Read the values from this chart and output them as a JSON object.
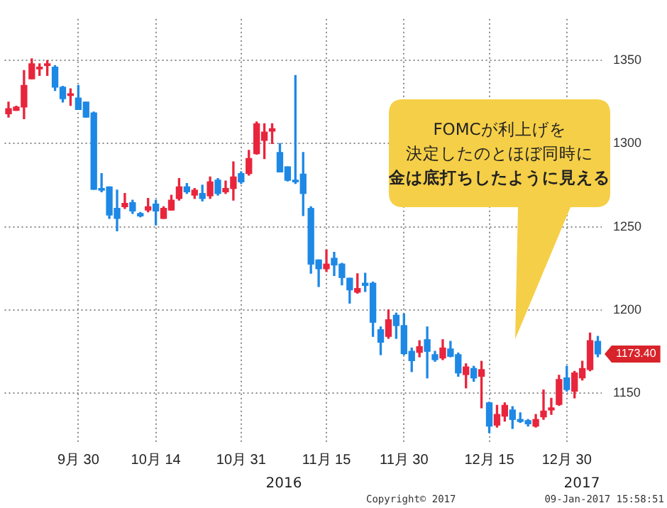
{
  "chart_data": {
    "type": "candlestick",
    "categories": [
      null,
      null,
      null,
      null,
      null,
      null,
      null,
      null,
      null,
      "9月 30",
      null,
      null,
      null,
      null,
      null,
      null,
      null,
      null,
      null,
      "10月 14",
      null,
      null,
      null,
      null,
      null,
      null,
      null,
      null,
      null,
      null,
      "10月 31",
      null,
      null,
      null,
      null,
      null,
      null,
      null,
      null,
      null,
      null,
      "11月 15",
      null,
      null,
      null,
      null,
      null,
      null,
      null,
      null,
      null,
      "11月 30",
      null,
      null,
      null,
      null,
      null,
      null,
      null,
      null,
      null,
      null,
      "12月 15",
      null,
      null,
      null,
      null,
      null,
      null,
      null,
      null,
      null,
      "12月 30",
      null,
      null,
      null,
      null
    ],
    "ohlc": [
      [
        1318,
        1325,
        1316,
        1321
      ],
      [
        1320,
        1322.5,
        1320,
        1322
      ],
      [
        1322,
        1344,
        1315,
        1335
      ],
      [
        1339,
        1351,
        1339,
        1348
      ],
      [
        1345,
        1348,
        1341,
        1346
      ],
      [
        1347,
        1350,
        1341,
        1348
      ],
      [
        1346,
        1347,
        1332,
        1334
      ],
      [
        1334,
        1334.5,
        1325,
        1327
      ],
      [
        1329,
        1333,
        1323,
        1330
      ],
      [
        1327.5,
        1335,
        1320.5,
        1320.5
      ],
      [
        1325,
        1325,
        1316,
        1316
      ],
      [
        1318.5,
        1319,
        1272.5,
        1272.5
      ],
      [
        1273,
        1282,
        1271,
        1272
      ],
      [
        1274,
        1274,
        1255,
        1257
      ],
      [
        1261,
        1272,
        1247.5,
        1255
      ],
      [
        1262,
        1270,
        1261,
        1264
      ],
      [
        1264.5,
        1266,
        1258,
        1259.5
      ],
      [
        1258,
        1258.6,
        1256,
        1256.5
      ],
      [
        1260,
        1267,
        1259,
        1262
      ],
      [
        1263.6,
        1266,
        1251,
        1259.5
      ],
      [
        1255,
        1262,
        1255,
        1261
      ],
      [
        1260,
        1269,
        1260,
        1266
      ],
      [
        1267,
        1279,
        1266,
        1274
      ],
      [
        1274,
        1276,
        1270,
        1271
      ],
      [
        1269,
        1273,
        1267,
        1272
      ],
      [
        1270,
        1275,
        1265.5,
        1267
      ],
      [
        1268.6,
        1280,
        1267,
        1277
      ],
      [
        1278,
        1279,
        1269,
        1270
      ],
      [
        1271,
        1277.5,
        1270,
        1273
      ],
      [
        1273,
        1289,
        1266,
        1280
      ],
      [
        1282,
        1283,
        1276,
        1277
      ],
      [
        1282,
        1296,
        1281,
        1291
      ],
      [
        1294,
        1313,
        1293.6,
        1312
      ],
      [
        1302,
        1312,
        1291,
        1307
      ],
      [
        1307.5,
        1312,
        1300,
        1309
      ],
      [
        1294.7,
        1300,
        1283,
        1283
      ],
      [
        1286,
        1286,
        1277.5,
        1278
      ],
      [
        1278,
        1341,
        1276,
        1277
      ],
      [
        1281.7,
        1294.7,
        1256.7,
        1270
      ],
      [
        1261,
        1262,
        1222,
        1227.5
      ],
      [
        1230,
        1230,
        1214,
        1224.7
      ],
      [
        1224.7,
        1236,
        1223,
        1227.5
      ],
      [
        1231,
        1234.6,
        1220.6,
        1227
      ],
      [
        1227.5,
        1228,
        1215,
        1219.4
      ],
      [
        1219,
        1219,
        1204,
        1212
      ],
      [
        1210.6,
        1221.7,
        1210,
        1212.8
      ],
      [
        1216,
        1222,
        1211,
        1214.7
      ],
      [
        1216,
        1216.7,
        1184,
        1192.5
      ],
      [
        1188,
        1189.7,
        1173,
        1180.5
      ],
      [
        1184,
        1200,
        1182.8,
        1194
      ],
      [
        1196.7,
        1198,
        1182.8,
        1190.5
      ],
      [
        1190.5,
        1197.5,
        1173,
        1173.6
      ],
      [
        1175,
        1177,
        1162.8,
        1169.4
      ],
      [
        1174.4,
        1181.4,
        1171.7,
        1177.8
      ],
      [
        1182,
        1189.7,
        1159,
        1175
      ],
      [
        1173,
        1175,
        1169,
        1170
      ],
      [
        1171,
        1182,
        1170,
        1177
      ],
      [
        1176.4,
        1181,
        1171.7,
        1172
      ],
      [
        1173,
        1174,
        1160,
        1162
      ],
      [
        1161,
        1167.5,
        1153,
        1165.6
      ],
      [
        1164.7,
        1166,
        1157,
        1159
      ],
      [
        1160,
        1169,
        1141,
        1164
      ],
      [
        1144,
        1144.4,
        1126,
        1130
      ],
      [
        1130.6,
        1142.5,
        1129.4,
        1137
      ],
      [
        1136,
        1144,
        1133,
        1142.5
      ],
      [
        1139.7,
        1141.7,
        1128.6,
        1134
      ],
      [
        1134,
        1138,
        1132.2,
        1132.8
      ],
      [
        1133.3,
        1134,
        1130,
        1131.4
      ],
      [
        1130,
        1137,
        1129.4,
        1134
      ],
      [
        1135.6,
        1151.7,
        1134,
        1139
      ],
      [
        1139.7,
        1146.7,
        1137,
        1141
      ],
      [
        1143,
        1160.6,
        1142.5,
        1158
      ],
      [
        1159,
        1166,
        1151,
        1152
      ],
      [
        1151,
        1163,
        1147,
        1162
      ],
      [
        1159,
        1169,
        1157.8,
        1164.7
      ],
      [
        1164,
        1186,
        1163.3,
        1181.4
      ],
      [
        1181,
        1184,
        1171.7,
        1173.4
      ]
    ],
    "colors": [
      "#e8253c",
      "#e8253c",
      "#e8253c",
      "#e8253c",
      "#e8253c",
      "#e8253c",
      "#1e88e5",
      "#1e88e5",
      "#e8253c",
      "#1e88e5",
      "#1e88e5",
      "#1e88e5",
      "#1e88e5",
      "#1e88e5",
      "#1e88e5",
      "#e8253c",
      "#1e88e5",
      "#1e88e5",
      "#e8253c",
      "#1e88e5",
      "#e8253c",
      "#e8253c",
      "#e8253c",
      "#1e88e5",
      "#e8253c",
      "#1e88e5",
      "#e8253c",
      "#1e88e5",
      "#e8253c",
      "#e8253c",
      "#1e88e5",
      "#e8253c",
      "#e8253c",
      "#e8253c",
      "#e8253c",
      "#1e88e5",
      "#1e88e5",
      "#1e88e5",
      "#1e88e5",
      "#1e88e5",
      "#1e88e5",
      "#e8253c",
      "#1e88e5",
      "#1e88e5",
      "#1e88e5",
      "#e8253c",
      "#1e88e5",
      "#1e88e5",
      "#1e88e5",
      "#e8253c",
      "#1e88e5",
      "#1e88e5",
      "#1e88e5",
      "#e8253c",
      "#1e88e5",
      "#1e88e5",
      "#e8253c",
      "#1e88e5",
      "#1e88e5",
      "#e8253c",
      "#1e88e5",
      "#e8253c",
      "#1e88e5",
      "#e8253c",
      "#e8253c",
      "#1e88e5",
      "#1e88e5",
      "#1e88e5",
      "#e8253c",
      "#e8253c",
      "#e8253c",
      "#e8253c",
      "#1e88e5",
      "#e8253c",
      "#e8253c",
      "#e8253c",
      "#1e88e5"
    ],
    "ylim": [
      1120,
      1375
    ],
    "yticks": [
      1150,
      1200,
      1250,
      1300,
      1350
    ],
    "grid": true,
    "legend": false,
    "annotations": [
      "FOMCが利上げを",
      "決定したのとほぼ同時に",
      "金は底打ちしたように見える",
      "1173.40",
      "2016",
      "2017",
      "Copyright© 2017",
      "09-Jan-2017 15:58:51"
    ]
  }
}
